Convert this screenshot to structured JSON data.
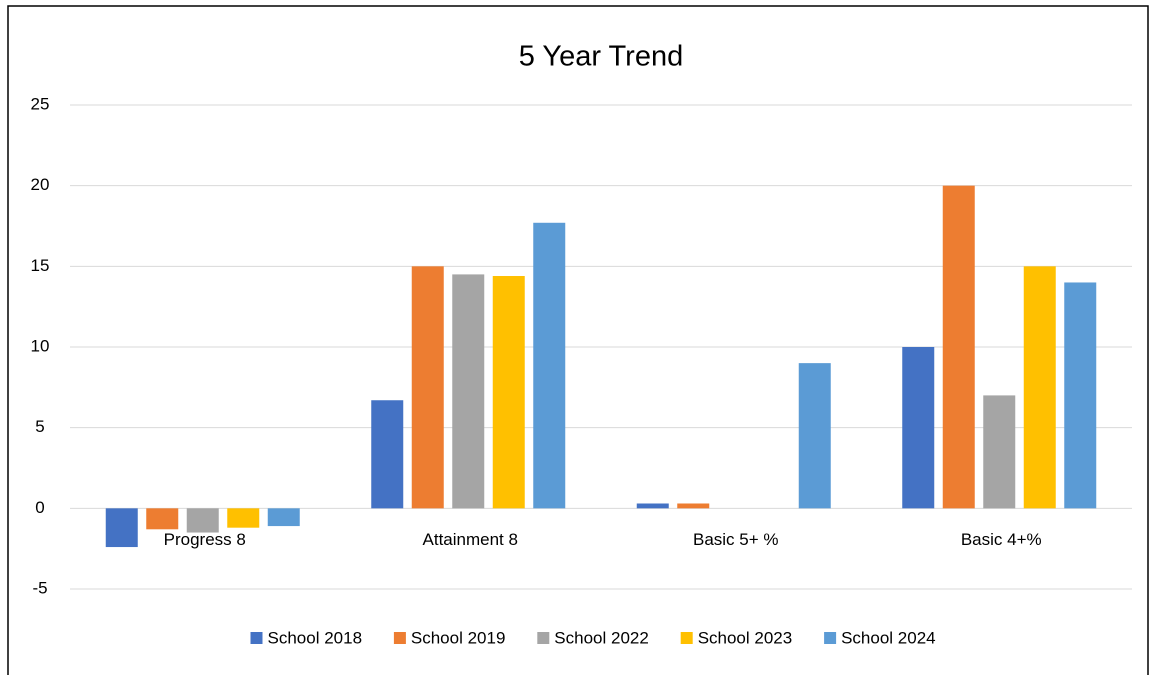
{
  "chart_data": {
    "type": "bar",
    "title": "5 Year Trend",
    "categories": [
      "Progress 8",
      "Attainment 8",
      "Basic 5+ %",
      "Basic 4+%"
    ],
    "series": [
      {
        "name": "School 2018",
        "color": "#4472c4",
        "values": [
          -2.4,
          6.7,
          0.3,
          10
        ]
      },
      {
        "name": "School 2019",
        "color": "#ed7d31",
        "values": [
          -1.3,
          15,
          0.3,
          20
        ]
      },
      {
        "name": "School 2022",
        "color": "#a5a5a5",
        "values": [
          -1.5,
          14.5,
          0,
          7
        ]
      },
      {
        "name": "School 2023",
        "color": "#ffc000",
        "values": [
          -1.2,
          14.4,
          0,
          15
        ]
      },
      {
        "name": "School 2024",
        "color": "#5b9bd5",
        "values": [
          -1.1,
          17.7,
          9,
          14
        ]
      }
    ],
    "ylim": [
      -5,
      25
    ],
    "yticks": [
      -5,
      0,
      5,
      10,
      15,
      20,
      25
    ],
    "grid": true,
    "legend": "bottom"
  }
}
